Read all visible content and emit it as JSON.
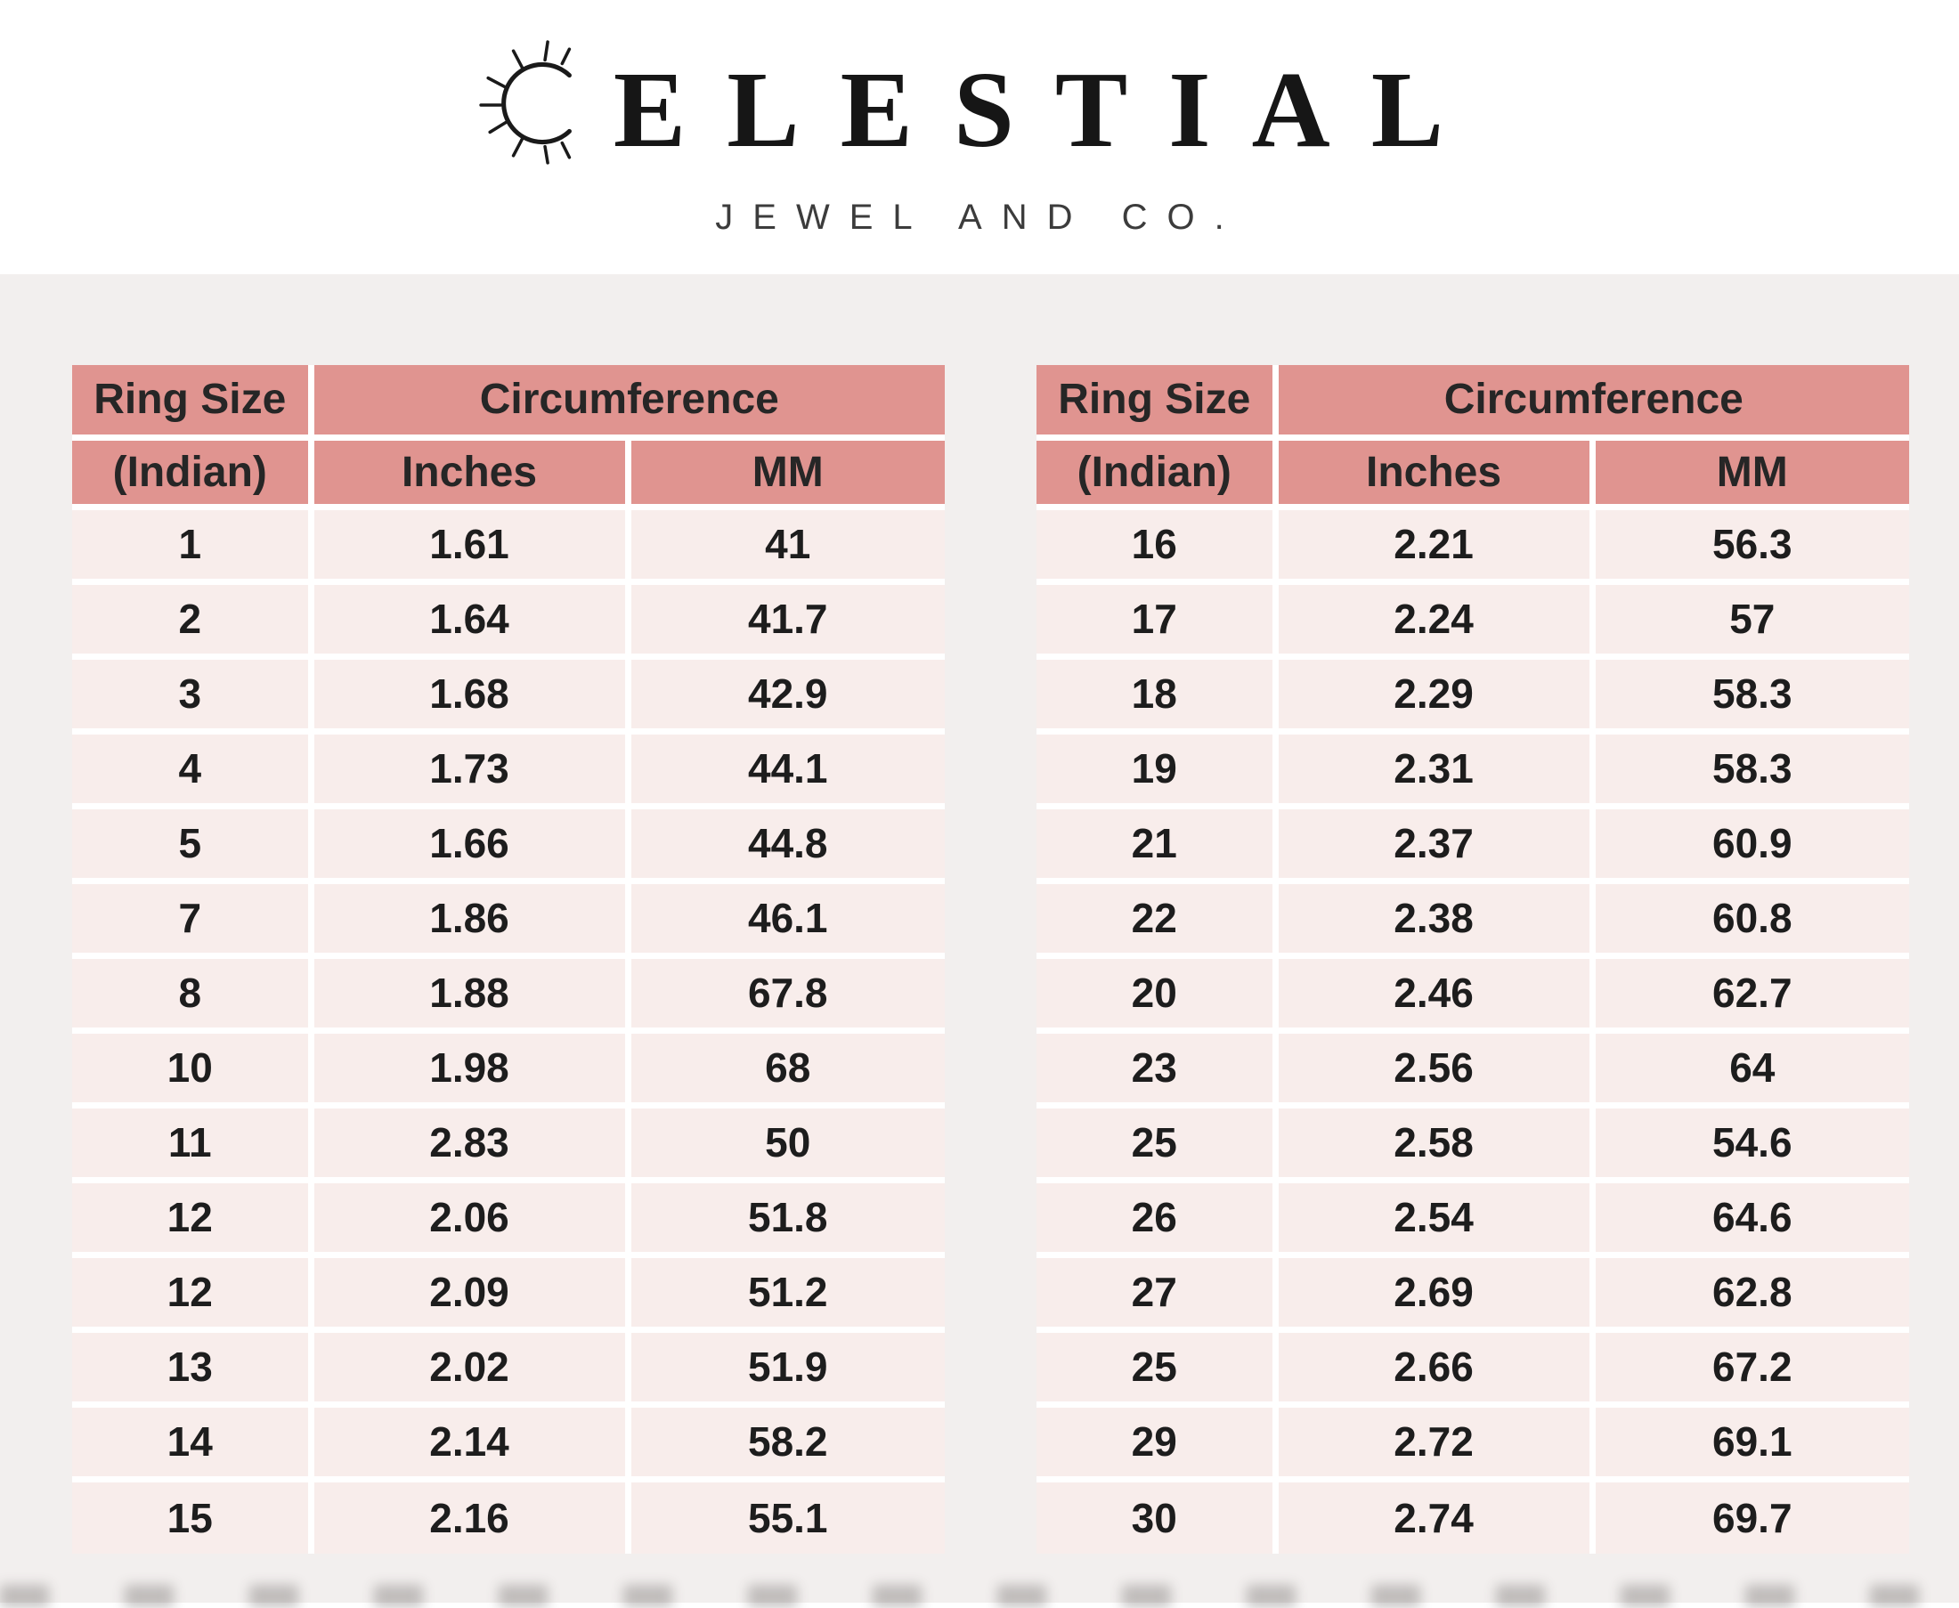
{
  "brand": {
    "name": "CELESTIAL",
    "name_after_sun": "ELESTIAL",
    "subtitle": "JEWEL AND CO."
  },
  "colors": {
    "header_bg": "#e09490",
    "row_bg": "#f8edeb",
    "page_background": "#f2efee",
    "separator": "#ffffff",
    "text": "#1d1d1d"
  },
  "tables": [
    {
      "name": "left",
      "headers": {
        "ring_size": "Ring Size",
        "indian": "(Indian)",
        "circumference": "Circumference",
        "inches": "Inches",
        "mm": "MM"
      },
      "rows": [
        [
          "1",
          "1.61",
          "41"
        ],
        [
          "2",
          "1.64",
          "41.7"
        ],
        [
          "3",
          "1.68",
          "42.9"
        ],
        [
          "4",
          "1.73",
          "44.1"
        ],
        [
          "5",
          "1.66",
          "44.8"
        ],
        [
          "7",
          "1.86",
          "46.1"
        ],
        [
          "8",
          "1.88",
          "67.8"
        ],
        [
          "10",
          "1.98",
          "68"
        ],
        [
          "11",
          "2.83",
          "50"
        ],
        [
          "12",
          "2.06",
          "51.8"
        ],
        [
          "12",
          "2.09",
          "51.2"
        ],
        [
          "13",
          "2.02",
          "51.9"
        ],
        [
          "14",
          "2.14",
          "58.2"
        ],
        [
          "15",
          "2.16",
          "55.1"
        ]
      ]
    },
    {
      "name": "right",
      "headers": {
        "ring_size": "Ring Size",
        "indian": "(Indian)",
        "circumference": "Circumference",
        "inches": "Inches",
        "mm": "MM"
      },
      "rows": [
        [
          "16",
          "2.21",
          "56.3"
        ],
        [
          "17",
          "2.24",
          "57"
        ],
        [
          "18",
          "2.29",
          "58.3"
        ],
        [
          "19",
          "2.31",
          "58.3"
        ],
        [
          "21",
          "2.37",
          "60.9"
        ],
        [
          "22",
          "2.38",
          "60.8"
        ],
        [
          "20",
          "2.46",
          "62.7"
        ],
        [
          "23",
          "2.56",
          "64"
        ],
        [
          "25",
          "2.58",
          "54.6"
        ],
        [
          "26",
          "2.54",
          "64.6"
        ],
        [
          "27",
          "2.69",
          "62.8"
        ],
        [
          "25",
          "2.66",
          "67.2"
        ],
        [
          "29",
          "2.72",
          "69.1"
        ],
        [
          "30",
          "2.74",
          "69.7"
        ]
      ]
    }
  ]
}
